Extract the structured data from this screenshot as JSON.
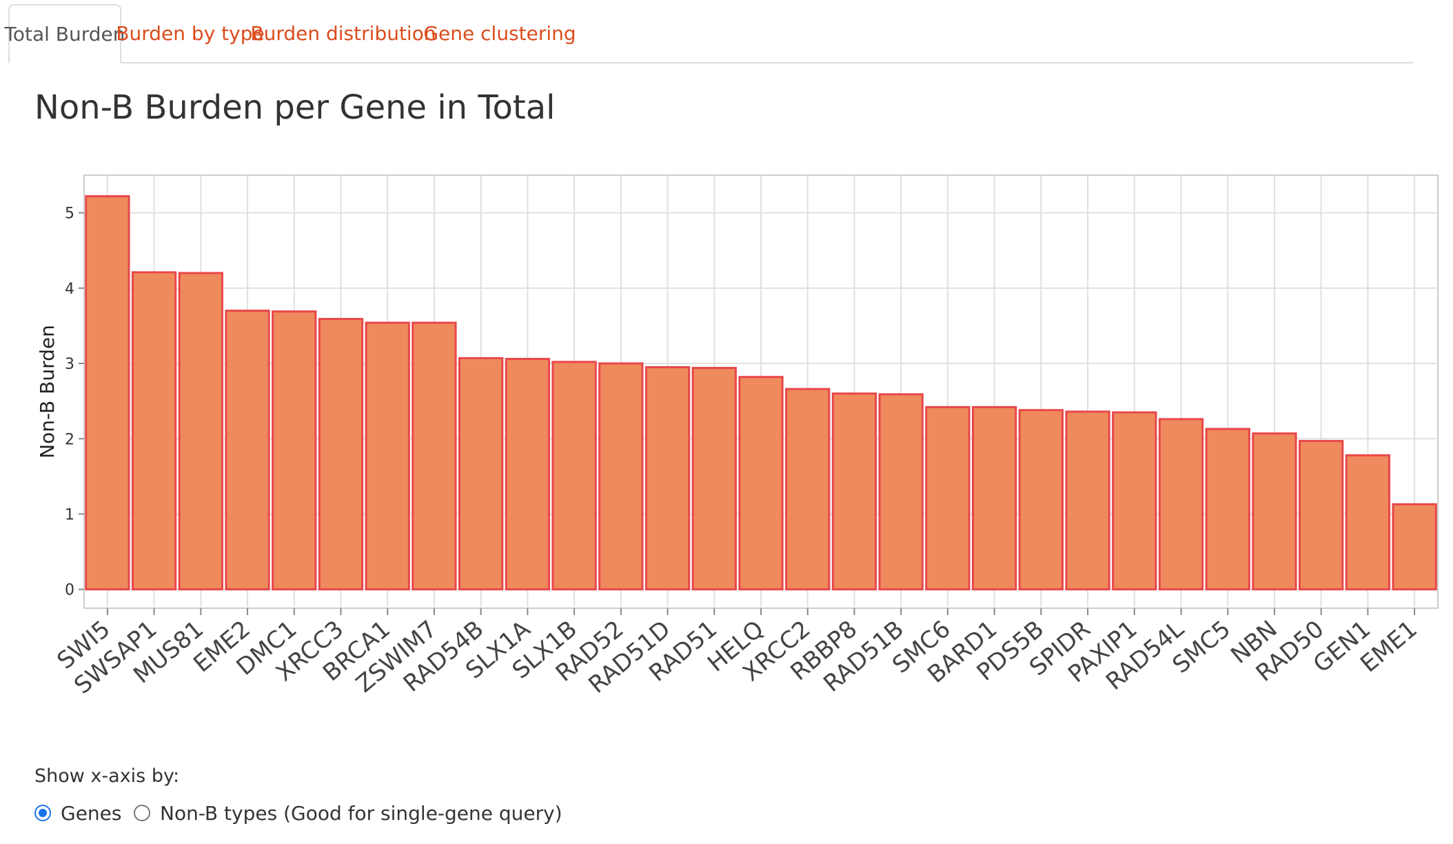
{
  "tabs": [
    {
      "label": "Total Burden",
      "active": true
    },
    {
      "label": "Burden by type",
      "active": false
    },
    {
      "label": "Burden distribution",
      "active": false
    },
    {
      "label": "Gene clustering",
      "active": false
    }
  ],
  "page_title": "Non-B Burden per Gene in Total",
  "chart_data": {
    "type": "bar",
    "title": "",
    "xlabel": "",
    "ylabel": "Non-B Burden",
    "ylim": [
      -0.25,
      5.5
    ],
    "yticks": [
      0,
      1,
      2,
      3,
      4,
      5
    ],
    "grid": true,
    "categories": [
      "SWI5",
      "SWSAP1",
      "MUS81",
      "EME2",
      "DMC1",
      "XRCC3",
      "BRCA1",
      "ZSWIM7",
      "RAD54B",
      "SLX1A",
      "SLX1B",
      "RAD52",
      "RAD51D",
      "RAD51",
      "HELQ",
      "XRCC2",
      "RBBP8",
      "RAD51B",
      "SMC6",
      "BARD1",
      "PDS5B",
      "SPIDR",
      "PAXIP1",
      "RAD54L",
      "SMC5",
      "NBN",
      "RAD50",
      "GEN1",
      "EME1"
    ],
    "values": [
      5.22,
      4.21,
      4.2,
      3.7,
      3.69,
      3.59,
      3.54,
      3.54,
      3.07,
      3.06,
      3.02,
      3.0,
      2.95,
      2.94,
      2.82,
      2.66,
      2.6,
      2.59,
      2.42,
      2.42,
      2.38,
      2.36,
      2.35,
      2.26,
      2.13,
      2.07,
      1.97,
      1.78,
      1.13
    ],
    "bar_fill": "#ef8a5d",
    "bar_stroke": "#e8474a"
  },
  "controls": {
    "label": "Show x-axis by:",
    "options": [
      {
        "label": "Genes",
        "checked": true
      },
      {
        "label": "Non-B types (Good for single-gene query)",
        "checked": false
      }
    ]
  },
  "colors": {
    "accent": "#dd4b1c",
    "radio": "#1a73e8"
  }
}
